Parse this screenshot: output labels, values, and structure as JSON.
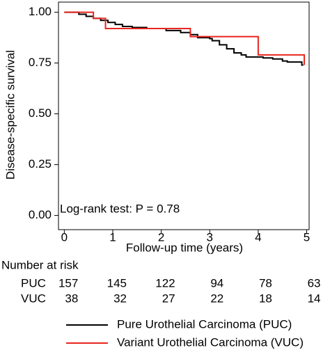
{
  "chart_data": {
    "type": "step",
    "y_label": "Disease-specific survival",
    "x_label": "Follow-up time (years)",
    "annotation": "Log-rank test: P = 0.78",
    "xlim": [
      -0.12,
      5.05
    ],
    "ylim": [
      -0.07,
      1.05
    ],
    "xticks": [
      0,
      1,
      2,
      3,
      4,
      5
    ],
    "yticks": [
      {
        "value": 0,
        "label": "0.00"
      },
      0.25,
      {
        "value": 0.5,
        "label": "0.50"
      },
      0.75,
      {
        "value": 1,
        "label": "1.00"
      }
    ],
    "series": [
      {
        "name": "Pure Urothelial Carcinoma (PUC)",
        "color": "#000000",
        "x": [
          0,
          0.3,
          0.45,
          0.6,
          0.75,
          0.9,
          1.05,
          1.2,
          1.4,
          1.7,
          2.1,
          2.4,
          2.6,
          2.75,
          3.0,
          3.05,
          3.2,
          3.35,
          3.5,
          3.65,
          3.75,
          4.1,
          4.3,
          4.5,
          4.6,
          4.9,
          4.93
        ],
        "values": [
          1,
          0.99,
          0.98,
          0.97,
          0.96,
          0.95,
          0.94,
          0.93,
          0.925,
          0.92,
          0.91,
          0.9,
          0.89,
          0.875,
          0.87,
          0.86,
          0.84,
          0.82,
          0.8,
          0.79,
          0.78,
          0.775,
          0.77,
          0.76,
          0.755,
          0.74,
          0.74
        ]
      },
      {
        "name": "Variant Urothelial Carcinoma (VUC)",
        "color": "#e8251f",
        "x": [
          0,
          0.6,
          0.85,
          2.6,
          4.0,
          4.95
        ],
        "values": [
          1,
          0.97,
          0.92,
          0.88,
          0.79,
          0.74
        ]
      }
    ],
    "risk_table": {
      "title": "Number at risk",
      "rows": [
        {
          "label": "PUC",
          "values": [
            157,
            145,
            122,
            94,
            78,
            63
          ]
        },
        {
          "label": "VUC",
          "values": [
            38,
            32,
            27,
            22,
            18,
            14
          ]
        }
      ]
    }
  }
}
